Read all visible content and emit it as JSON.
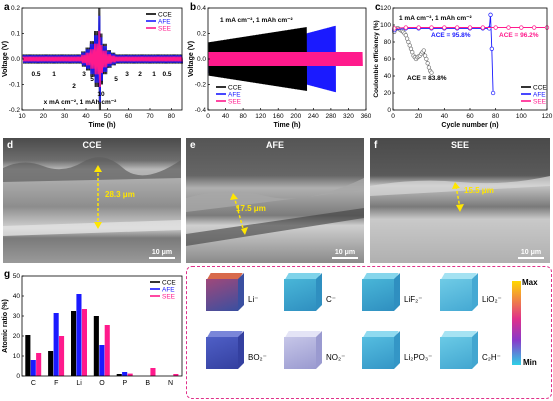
{
  "panels": {
    "a": {
      "label": "a",
      "xlabel": "Time (h)",
      "ylabel": "Voltage (V)",
      "xticks": [
        "10",
        "20",
        "30",
        "40",
        "50",
        "60",
        "70",
        "80"
      ],
      "yticks": [
        "0.2",
        "0.1",
        "0.0",
        "-0.1",
        "-0.2"
      ],
      "legend": [
        "CCE",
        "AFE",
        "SEE"
      ],
      "rates": [
        "0.5",
        "1",
        "2",
        "3",
        "5",
        "10",
        "5",
        "3",
        "2",
        "1",
        "0.5"
      ],
      "note": "x mA cm⁻², 1 mAh cm⁻²"
    },
    "b": {
      "label": "b",
      "xlabel": "Time (h)",
      "ylabel": "Voltage (V)",
      "xticks": [
        "0",
        "40",
        "80",
        "120",
        "160",
        "200",
        "240",
        "280",
        "320",
        "360"
      ],
      "yticks": [
        "0.4",
        "0.2",
        "0.0",
        "-0.2",
        "-0.4"
      ],
      "legend": [
        "CCE",
        "AFE",
        "SEE"
      ],
      "note": "1 mA cm⁻², 1 mAh cm⁻²"
    },
    "c": {
      "label": "c",
      "xlabel": "Cycle number (n)",
      "ylabel": "Coulombic efficiency (%)",
      "xticks": [
        "0",
        "20",
        "40",
        "60",
        "80",
        "100",
        "120"
      ],
      "yticks": [
        "120",
        "100",
        "80",
        "60",
        "40",
        "20",
        "0"
      ],
      "legend": [
        "CCE",
        "AFE",
        "SEE"
      ],
      "note": "1 mA cm⁻², 1 mAh cm⁻²",
      "ace_afe": "ACE = 95.8%",
      "ace_see": "ACE = 96.2%",
      "ace_cce": "ACE = 83.8%"
    },
    "d": {
      "label": "d",
      "title": "CCE",
      "thickness": "28.3 μm",
      "scale": "10 μm"
    },
    "e": {
      "label": "e",
      "title": "AFE",
      "thickness": "17.5 μm",
      "scale": "10 μm"
    },
    "f": {
      "label": "f",
      "title": "SEE",
      "thickness": "15.5 μm",
      "scale": "10 μm"
    },
    "g": {
      "label": "g",
      "ylabel": "Atomic ratio (%)",
      "yticks": [
        "50",
        "40",
        "30",
        "20",
        "10",
        "0"
      ]
    },
    "h": {
      "label": "h",
      "species": [
        "Li⁻",
        "C⁻",
        "LiF₂⁻",
        "LiO₂⁻",
        "BO₂⁻",
        "NO₂⁻",
        "Li₂PO₃⁻",
        "C₂H⁻"
      ],
      "max": "Max",
      "min": "Min"
    }
  },
  "colors": {
    "CCE": "#000000",
    "AFE": "#1a1aff",
    "SEE": "#ff1a8c"
  },
  "chart_data": [
    {
      "type": "line",
      "panel": "a",
      "title": "",
      "xlabel": "Time (h)",
      "ylabel": "Voltage (V)",
      "xlim": [
        10,
        85
      ],
      "ylim": [
        -0.2,
        0.2
      ],
      "series": [
        {
          "name": "CCE"
        },
        {
          "name": "AFE"
        },
        {
          "name": "SEE"
        }
      ],
      "annotation": "x mA cm⁻², 1 mAh cm⁻²"
    },
    {
      "type": "line",
      "panel": "b",
      "title": "",
      "xlabel": "Time (h)",
      "ylabel": "Voltage (V)",
      "xlim": [
        0,
        360
      ],
      "ylim": [
        -0.4,
        0.4
      ],
      "series": [
        {
          "name": "CCE"
        },
        {
          "name": "AFE"
        },
        {
          "name": "SEE"
        }
      ],
      "annotation": "1 mA cm⁻², 1 mAh cm⁻²"
    },
    {
      "type": "scatter",
      "panel": "c",
      "title": "",
      "xlabel": "Cycle number (n)",
      "ylabel": "Coulombic efficiency (%)",
      "xlim": [
        0,
        120
      ],
      "ylim": [
        0,
        120
      ],
      "series": [
        {
          "name": "CCE",
          "x": [
            1,
            2,
            3,
            4,
            5,
            6,
            7,
            8,
            9,
            10,
            11,
            12,
            13,
            14,
            15,
            16,
            17,
            18,
            19,
            20,
            21,
            22,
            23,
            24,
            25,
            26,
            27,
            28,
            29,
            30
          ],
          "y": [
            92,
            95,
            96,
            96,
            95,
            94,
            93,
            92,
            90,
            88,
            84,
            80,
            76,
            72,
            68,
            64,
            62,
            60,
            62,
            63,
            64,
            66,
            68,
            70,
            64,
            60,
            55,
            50,
            46,
            44
          ]
        },
        {
          "name": "AFE",
          "x": [
            1,
            10,
            20,
            30,
            40,
            50,
            60,
            70,
            75,
            76,
            77,
            78
          ],
          "y": [
            94,
            96,
            96,
            96,
            96,
            96,
            96,
            96,
            96,
            112,
            72,
            20
          ]
        },
        {
          "name": "SEE",
          "x": [
            1,
            10,
            20,
            30,
            40,
            50,
            60,
            70,
            80,
            90,
            100,
            110,
            120
          ],
          "y": [
            96,
            97,
            97,
            97,
            97,
            97,
            97,
            97,
            97,
            97,
            97,
            97,
            97
          ]
        }
      ]
    },
    {
      "type": "bar",
      "panel": "g",
      "title": "",
      "xlabel": "",
      "ylabel": "Atomic ratio (%)",
      "ylim": [
        0,
        50
      ],
      "categories": [
        "C",
        "F",
        "Li",
        "O",
        "P",
        "B",
        "N"
      ],
      "series": [
        {
          "name": "CCE",
          "values": [
            20.5,
            12.5,
            32.5,
            30.0,
            1.0,
            0.0,
            0.0
          ]
        },
        {
          "name": "AFE",
          "values": [
            8.0,
            31.5,
            41.0,
            15.5,
            2.0,
            0.0,
            0.0
          ]
        },
        {
          "name": "SEE",
          "values": [
            11.5,
            20.0,
            33.5,
            25.5,
            1.2,
            4.0,
            1.0
          ]
        }
      ]
    }
  ]
}
